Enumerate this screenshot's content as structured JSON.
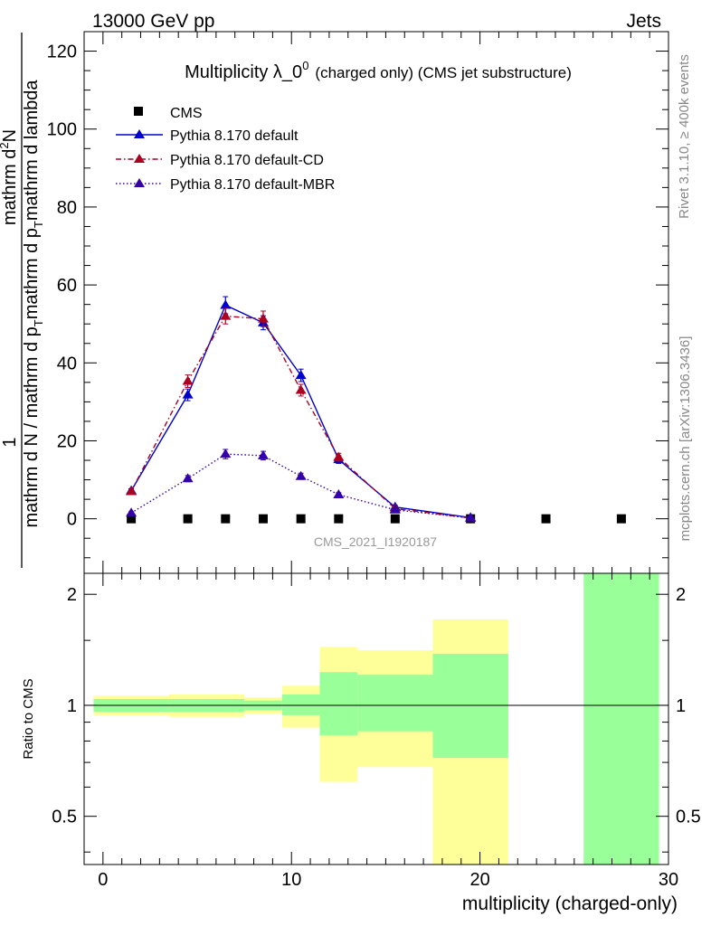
{
  "header": {
    "energy_label": "13000 GeV pp",
    "category_label": "Jets"
  },
  "side_labels": {
    "rivet": "Rivet 3.1.10, ≥ 400k events",
    "mcplots": "mcplots.cern.ch [arXiv:1306.3436]"
  },
  "legend_entries": [
    "CMS",
    "Pythia 8.170 default",
    "Pythia 8.170 default-CD",
    "Pythia 8.170 default-MBR"
  ],
  "colors": {
    "cms": "#000000",
    "default": "#0000cc",
    "cd": "#aa0022",
    "mbr": "#3300aa",
    "band_green": "#99ff99",
    "band_yellow": "#ffff99"
  },
  "chart_data": [
    {
      "type": "scatter",
      "title_main": "Multiplicity λ_0",
      "title_sup": "0",
      "title_suffix": "(charged only) (CMS jet substructure)",
      "watermark": "CMS_2021_I1920187",
      "ylabel_top": "1",
      "ylabel_parts": [
        "mathrm d N / mathrm d p",
        "mathrm d N",
        "mathrm d p",
        "mathrm d lambda"
      ],
      "ylabel_subs": [
        "T",
        "T"
      ],
      "ylabel_num": "mathrm d",
      "ylabel_num_sup": "2",
      "ylabel_num_end": "N",
      "ylim": [
        -14,
        125
      ],
      "yticks": [
        0,
        20,
        40,
        60,
        80,
        100,
        120
      ],
      "series": [
        {
          "name": "CMS",
          "style": "square",
          "x": [
            1.5,
            4.5,
            6.5,
            8.5,
            10.5,
            12.5,
            15.5,
            19.5,
            23.5,
            27.5
          ],
          "y": [
            0,
            0,
            0,
            0,
            0,
            0,
            0,
            0,
            0,
            0
          ]
        },
        {
          "name": "Pythia 8.170 default",
          "style": "solid",
          "x": [
            1.5,
            4.5,
            6.5,
            8.5,
            10.5,
            12.5,
            15.5,
            19.5
          ],
          "y": [
            7.2,
            31.8,
            54.8,
            50.3,
            36.8,
            15.2,
            3.0,
            0.3
          ],
          "err": [
            0.5,
            1.5,
            2.2,
            1.8,
            1.6,
            1.0,
            0.4,
            0.1
          ]
        },
        {
          "name": "Pythia 8.170 default-CD",
          "style": "dashdot",
          "x": [
            1.5,
            4.5,
            6.5,
            8.5,
            10.5,
            12.5,
            15.5,
            19.5
          ],
          "y": [
            7.0,
            35.3,
            52.0,
            51.3,
            33.0,
            15.8,
            2.6,
            0.2
          ],
          "err": [
            0.5,
            1.6,
            2.0,
            2.0,
            1.5,
            1.0,
            0.4,
            0.1
          ]
        },
        {
          "name": "Pythia 8.170 default-MBR",
          "style": "dotted",
          "x": [
            1.5,
            4.5,
            6.5,
            8.5,
            10.5,
            12.5,
            15.5,
            19.5
          ],
          "y": [
            1.5,
            10.3,
            16.6,
            16.2,
            10.9,
            6.2,
            2.3,
            0.2
          ],
          "err": [
            0.3,
            0.8,
            1.2,
            1.1,
            0.8,
            0.5,
            0.3,
            0.1
          ]
        }
      ]
    },
    {
      "type": "area",
      "ylabel": "Ratio to CMS",
      "xlabel": "multiplicity (charged-only)",
      "xlim": [
        -1,
        30
      ],
      "xticks": [
        0,
        10,
        20,
        30
      ],
      "ylim": [
        0.37,
        2.28
      ],
      "yticks": [
        0.5,
        1,
        2
      ],
      "ytick_labels": [
        "0.5",
        "1",
        "2"
      ],
      "reference": 1,
      "bins": [
        {
          "lo": -0.5,
          "hi": 3.5,
          "green": [
            0.96,
            1.04
          ],
          "yellow": [
            0.94,
            1.06
          ]
        },
        {
          "lo": 3.5,
          "hi": 5.5,
          "green": [
            0.96,
            1.04
          ],
          "yellow": [
            0.93,
            1.07
          ]
        },
        {
          "lo": 5.5,
          "hi": 7.5,
          "green": [
            0.96,
            1.04
          ],
          "yellow": [
            0.93,
            1.07
          ]
        },
        {
          "lo": 7.5,
          "hi": 9.5,
          "green": [
            0.97,
            1.03
          ],
          "yellow": [
            0.95,
            1.05
          ]
        },
        {
          "lo": 9.5,
          "hi": 11.5,
          "green": [
            0.94,
            1.07
          ],
          "yellow": [
            0.87,
            1.13
          ]
        },
        {
          "lo": 11.5,
          "hi": 13.5,
          "green": [
            0.83,
            1.23
          ],
          "yellow": [
            0.62,
            1.44
          ]
        },
        {
          "lo": 13.5,
          "hi": 17.5,
          "green": [
            0.85,
            1.21
          ],
          "yellow": [
            0.68,
            1.41
          ]
        },
        {
          "lo": 17.5,
          "hi": 21.5,
          "green": [
            0.72,
            1.38
          ],
          "yellow": [
            0.37,
            1.71
          ]
        },
        {
          "lo": 25.5,
          "hi": 29.5,
          "green": [
            0.37,
            2.28
          ],
          "yellow": null
        }
      ]
    }
  ]
}
